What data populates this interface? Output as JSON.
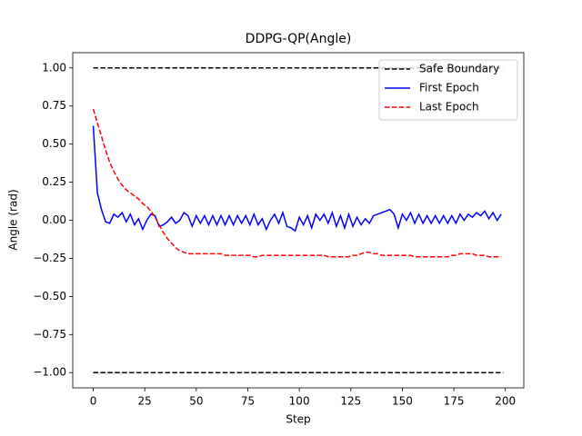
{
  "chart_data": {
    "type": "line",
    "title": "DDPG-QP(Angle)",
    "xlabel": "Step",
    "ylabel": "Angle (rad)",
    "xlim": [
      -9.95,
      208.95
    ],
    "ylim": [
      -1.1,
      1.1
    ],
    "xticks": [
      0,
      25,
      50,
      75,
      100,
      125,
      150,
      175,
      200
    ],
    "yticks": [
      {
        "value": 1,
        "label": "1.00"
      },
      {
        "value": 0.75,
        "label": "0.75"
      },
      {
        "value": 0.5,
        "label": "0.50"
      },
      {
        "value": 0.25,
        "label": "0.25"
      },
      {
        "value": 0,
        "label": "0.00"
      },
      {
        "value": -0.25,
        "label": "−0.25"
      },
      {
        "value": -0.5,
        "label": "−0.50"
      },
      {
        "value": -0.75,
        "label": "−0.75"
      },
      {
        "value": -1,
        "label": "−1.00"
      }
    ],
    "legend": "upper right",
    "series": [
      {
        "name": "Safe Boundary",
        "color": "#000000",
        "linestyle": "dashed",
        "x": [
          0,
          199,
          null,
          0,
          199
        ],
        "values": [
          1,
          1,
          null,
          -1,
          -1
        ]
      },
      {
        "name": "First Epoch",
        "color": "#0000ff",
        "linestyle": "solid",
        "x": [
          0,
          2,
          4,
          6,
          8,
          10,
          12,
          14,
          16,
          18,
          20,
          22,
          24,
          26,
          28,
          30,
          32,
          34,
          36,
          38,
          40,
          42,
          44,
          46,
          48,
          50,
          52,
          54,
          56,
          58,
          60,
          62,
          64,
          66,
          68,
          70,
          72,
          74,
          76,
          78,
          80,
          82,
          84,
          86,
          88,
          90,
          92,
          94,
          96,
          98,
          100,
          102,
          104,
          106,
          108,
          110,
          112,
          114,
          116,
          118,
          120,
          122,
          124,
          126,
          128,
          130,
          132,
          134,
          136,
          138,
          140,
          142,
          144,
          146,
          148,
          150,
          152,
          154,
          156,
          158,
          160,
          162,
          164,
          166,
          168,
          170,
          172,
          174,
          176,
          178,
          180,
          182,
          184,
          186,
          188,
          190,
          192,
          194,
          196,
          198
        ],
        "values": [
          0.62,
          0.18,
          0.07,
          -0.01,
          -0.02,
          0.04,
          0.02,
          0.05,
          -0.01,
          0.04,
          -0.03,
          0.01,
          -0.06,
          0.0,
          0.04,
          0.03,
          -0.04,
          -0.03,
          -0.01,
          0.02,
          -0.02,
          0.0,
          0.05,
          0.03,
          -0.04,
          0.03,
          -0.02,
          0.03,
          -0.03,
          0.03,
          -0.03,
          0.03,
          -0.03,
          0.03,
          -0.03,
          0.03,
          -0.02,
          0.03,
          -0.03,
          0.04,
          -0.03,
          0.01,
          -0.06,
          0.0,
          0.04,
          -0.02,
          0.05,
          -0.04,
          -0.05,
          -0.07,
          0.02,
          -0.03,
          0.03,
          -0.05,
          0.04,
          0.0,
          0.04,
          -0.02,
          0.05,
          -0.04,
          0.03,
          -0.05,
          0.04,
          -0.04,
          0.02,
          -0.03,
          0.01,
          -0.02,
          0.03,
          0.04,
          0.05,
          0.06,
          0.07,
          0.04,
          -0.05,
          0.04,
          0.0,
          0.05,
          -0.02,
          0.04,
          -0.02,
          0.03,
          -0.02,
          0.03,
          -0.02,
          0.03,
          -0.02,
          0.03,
          -0.02,
          0.04,
          0.0,
          0.04,
          0.02,
          0.05,
          0.03,
          0.06,
          0.01,
          0.05,
          0.0,
          0.04
        ]
      },
      {
        "name": "Last Epoch",
        "color": "#ff0000",
        "linestyle": "dashed",
        "x": [
          0,
          2,
          4,
          6,
          8,
          10,
          12,
          14,
          16,
          18,
          20,
          22,
          24,
          26,
          28,
          30,
          32,
          34,
          36,
          38,
          40,
          42,
          44,
          46,
          48,
          50,
          52,
          54,
          56,
          58,
          60,
          62,
          64,
          66,
          68,
          70,
          72,
          74,
          76,
          78,
          80,
          82,
          84,
          86,
          88,
          90,
          92,
          94,
          96,
          98,
          100,
          102,
          104,
          106,
          108,
          110,
          112,
          114,
          116,
          118,
          120,
          122,
          124,
          126,
          128,
          130,
          132,
          134,
          136,
          138,
          140,
          142,
          144,
          146,
          148,
          150,
          152,
          154,
          156,
          158,
          160,
          162,
          164,
          166,
          168,
          170,
          172,
          174,
          176,
          178,
          180,
          182,
          184,
          186,
          188,
          190,
          192,
          194,
          196,
          198
        ],
        "values": [
          0.73,
          0.64,
          0.55,
          0.46,
          0.38,
          0.32,
          0.27,
          0.23,
          0.2,
          0.18,
          0.16,
          0.14,
          0.11,
          0.09,
          0.06,
          0.02,
          -0.03,
          -0.08,
          -0.12,
          -0.15,
          -0.18,
          -0.2,
          -0.21,
          -0.22,
          -0.22,
          -0.22,
          -0.22,
          -0.22,
          -0.22,
          -0.22,
          -0.22,
          -0.22,
          -0.23,
          -0.23,
          -0.23,
          -0.23,
          -0.23,
          -0.23,
          -0.23,
          -0.24,
          -0.24,
          -0.23,
          -0.23,
          -0.23,
          -0.23,
          -0.23,
          -0.23,
          -0.23,
          -0.23,
          -0.23,
          -0.23,
          -0.23,
          -0.23,
          -0.23,
          -0.23,
          -0.23,
          -0.23,
          -0.24,
          -0.24,
          -0.24,
          -0.24,
          -0.24,
          -0.24,
          -0.23,
          -0.23,
          -0.22,
          -0.21,
          -0.21,
          -0.22,
          -0.22,
          -0.23,
          -0.23,
          -0.23,
          -0.23,
          -0.23,
          -0.23,
          -0.23,
          -0.23,
          -0.24,
          -0.24,
          -0.24,
          -0.24,
          -0.24,
          -0.24,
          -0.24,
          -0.24,
          -0.24,
          -0.23,
          -0.23,
          -0.22,
          -0.22,
          -0.22,
          -0.22,
          -0.23,
          -0.23,
          -0.23,
          -0.24,
          -0.24,
          -0.24,
          -0.24
        ]
      }
    ]
  }
}
